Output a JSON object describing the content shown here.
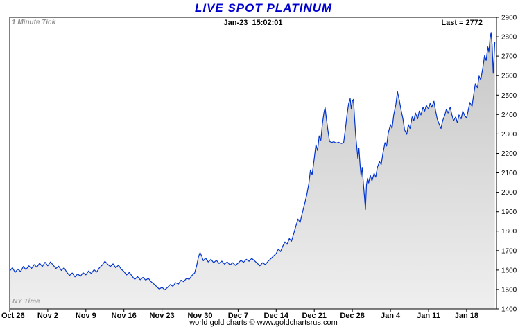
{
  "chart_data": {
    "type": "area",
    "title": "LIVE SPOT PLATINUM",
    "tick_type": "1 Minute Tick",
    "timestamp": "Jan-23  15:02:01",
    "last_label": "Last = 2772",
    "last_value": 2772,
    "timezone_note": "NY Time",
    "footer": "world gold charts © www.goldchartsrus.com",
    "title_color": "#0000cc",
    "line_color": "#0033cc",
    "area_color_top": "#c6c6c6",
    "area_color_bottom": "#efefef",
    "grid": "off",
    "legend": "none",
    "xlabel": "",
    "ylabel": "",
    "ylim": [
      1400,
      2900
    ],
    "y_ticks": [
      1400,
      1500,
      1600,
      1700,
      1800,
      1900,
      2000,
      2100,
      2200,
      2300,
      2400,
      2500,
      2600,
      2700,
      2800,
      2900
    ],
    "x_range": [
      0,
      89.5
    ],
    "x_ticks": [
      {
        "day": 0,
        "label": "Oct 26"
      },
      {
        "day": 7,
        "label": "Nov 2"
      },
      {
        "day": 14,
        "label": "Nov 9"
      },
      {
        "day": 21,
        "label": "Nov 16"
      },
      {
        "day": 28,
        "label": "Nov 23"
      },
      {
        "day": 35,
        "label": "Nov 30"
      },
      {
        "day": 42,
        "label": "Dec 7"
      },
      {
        "day": 49,
        "label": "Dec 14"
      },
      {
        "day": 56,
        "label": "Dec 21"
      },
      {
        "day": 63,
        "label": "Dec 28"
      },
      {
        "day": 70,
        "label": "Jan 4"
      },
      {
        "day": 77,
        "label": "Jan 11"
      },
      {
        "day": 84,
        "label": "Jan 18"
      }
    ],
    "series": [
      [
        0,
        1595
      ],
      [
        0.5,
        1612
      ],
      [
        1,
        1588
      ],
      [
        1.5,
        1605
      ],
      [
        2,
        1592
      ],
      [
        2.5,
        1618
      ],
      [
        3,
        1602
      ],
      [
        3.5,
        1622
      ],
      [
        4,
        1608
      ],
      [
        4.5,
        1628
      ],
      [
        5,
        1615
      ],
      [
        5.5,
        1635
      ],
      [
        6,
        1618
      ],
      [
        6.5,
        1640
      ],
      [
        7,
        1622
      ],
      [
        7.5,
        1642
      ],
      [
        8,
        1625
      ],
      [
        8.5,
        1608
      ],
      [
        9,
        1620
      ],
      [
        9.5,
        1598
      ],
      [
        10,
        1612
      ],
      [
        10.5,
        1588
      ],
      [
        11,
        1572
      ],
      [
        11.5,
        1585
      ],
      [
        12,
        1565
      ],
      [
        12.5,
        1580
      ],
      [
        13,
        1568
      ],
      [
        13.5,
        1586
      ],
      [
        14,
        1575
      ],
      [
        14.5,
        1595
      ],
      [
        15,
        1582
      ],
      [
        15.5,
        1602
      ],
      [
        16,
        1590
      ],
      [
        16.5,
        1612
      ],
      [
        17,
        1625
      ],
      [
        17.5,
        1645
      ],
      [
        18,
        1630
      ],
      [
        18.5,
        1618
      ],
      [
        19,
        1632
      ],
      [
        19.5,
        1612
      ],
      [
        20,
        1625
      ],
      [
        20.5,
        1605
      ],
      [
        21,
        1592
      ],
      [
        21.5,
        1575
      ],
      [
        22,
        1588
      ],
      [
        22.5,
        1568
      ],
      [
        23,
        1552
      ],
      [
        23.5,
        1566
      ],
      [
        24,
        1550
      ],
      [
        24.5,
        1562
      ],
      [
        25,
        1548
      ],
      [
        25.5,
        1558
      ],
      [
        26,
        1540
      ],
      [
        26.5,
        1528
      ],
      [
        27,
        1515
      ],
      [
        27.5,
        1502
      ],
      [
        28,
        1512
      ],
      [
        28.5,
        1498
      ],
      [
        29,
        1510
      ],
      [
        29.5,
        1525
      ],
      [
        30,
        1516
      ],
      [
        30.5,
        1535
      ],
      [
        31,
        1528
      ],
      [
        31.5,
        1548
      ],
      [
        32,
        1540
      ],
      [
        32.5,
        1558
      ],
      [
        33,
        1552
      ],
      [
        33.5,
        1572
      ],
      [
        34,
        1585
      ],
      [
        34.4,
        1625
      ],
      [
        34.7,
        1668
      ],
      [
        35,
        1690
      ],
      [
        35.3,
        1672
      ],
      [
        35.6,
        1648
      ],
      [
        36,
        1662
      ],
      [
        36.5,
        1642
      ],
      [
        37,
        1655
      ],
      [
        37.5,
        1638
      ],
      [
        38,
        1650
      ],
      [
        38.5,
        1634
      ],
      [
        39,
        1646
      ],
      [
        39.5,
        1630
      ],
      [
        40,
        1642
      ],
      [
        40.5,
        1626
      ],
      [
        41,
        1638
      ],
      [
        41.5,
        1624
      ],
      [
        42,
        1636
      ],
      [
        42.5,
        1650
      ],
      [
        43,
        1640
      ],
      [
        43.5,
        1655
      ],
      [
        44,
        1645
      ],
      [
        44.5,
        1660
      ],
      [
        45,
        1648
      ],
      [
        45.5,
        1635
      ],
      [
        46,
        1622
      ],
      [
        46.5,
        1638
      ],
      [
        47,
        1628
      ],
      [
        47.5,
        1645
      ],
      [
        48,
        1658
      ],
      [
        48.5,
        1672
      ],
      [
        49,
        1685
      ],
      [
        49.4,
        1708
      ],
      [
        49.8,
        1695
      ],
      [
        50.2,
        1722
      ],
      [
        50.6,
        1745
      ],
      [
        51,
        1732
      ],
      [
        51.4,
        1762
      ],
      [
        51.8,
        1748
      ],
      [
        52.2,
        1785
      ],
      [
        52.6,
        1825
      ],
      [
        53,
        1862
      ],
      [
        53.4,
        1845
      ],
      [
        53.8,
        1895
      ],
      [
        54.2,
        1938
      ],
      [
        54.6,
        1985
      ],
      [
        55,
        2045
      ],
      [
        55.3,
        2115
      ],
      [
        55.6,
        2090
      ],
      [
        56,
        2175
      ],
      [
        56.3,
        2245
      ],
      [
        56.6,
        2215
      ],
      [
        56.9,
        2290
      ],
      [
        57.2,
        2268
      ],
      [
        57.5,
        2355
      ],
      [
        57.8,
        2415
      ],
      [
        58,
        2435
      ],
      [
        58.2,
        2385
      ],
      [
        58.5,
        2322
      ],
      [
        58.8,
        2262
      ],
      [
        59.2,
        2256
      ],
      [
        59.6,
        2260
      ],
      [
        60,
        2253
      ],
      [
        60.5,
        2257
      ],
      [
        61,
        2251
      ],
      [
        61.4,
        2256
      ],
      [
        61.7,
        2320
      ],
      [
        62,
        2395
      ],
      [
        62.3,
        2455
      ],
      [
        62.6,
        2482
      ],
      [
        62.8,
        2428
      ],
      [
        63,
        2468
      ],
      [
        63.2,
        2478
      ],
      [
        63.4,
        2385
      ],
      [
        63.6,
        2295
      ],
      [
        63.8,
        2238
      ],
      [
        64,
        2175
      ],
      [
        64.2,
        2228
      ],
      [
        64.4,
        2148
      ],
      [
        64.6,
        2082
      ],
      [
        64.8,
        2128
      ],
      [
        65,
        2055
      ],
      [
        65.2,
        1985
      ],
      [
        65.4,
        1912
      ],
      [
        65.6,
        2038
      ],
      [
        65.8,
        2072
      ],
      [
        66,
        2048
      ],
      [
        66.3,
        2088
      ],
      [
        66.6,
        2058
      ],
      [
        67,
        2098
      ],
      [
        67.3,
        2078
      ],
      [
        67.6,
        2128
      ],
      [
        68,
        2158
      ],
      [
        68.3,
        2142
      ],
      [
        68.6,
        2198
      ],
      [
        69,
        2255
      ],
      [
        69.3,
        2238
      ],
      [
        69.6,
        2305
      ],
      [
        70,
        2348
      ],
      [
        70.3,
        2328
      ],
      [
        70.6,
        2398
      ],
      [
        71,
        2452
      ],
      [
        71.3,
        2518
      ],
      [
        71.6,
        2478
      ],
      [
        72,
        2418
      ],
      [
        72.3,
        2378
      ],
      [
        72.6,
        2322
      ],
      [
        73,
        2298
      ],
      [
        73.3,
        2348
      ],
      [
        73.6,
        2328
      ],
      [
        74,
        2388
      ],
      [
        74.3,
        2368
      ],
      [
        74.6,
        2408
      ],
      [
        75,
        2378
      ],
      [
        75.3,
        2418
      ],
      [
        75.6,
        2398
      ],
      [
        76,
        2438
      ],
      [
        76.3,
        2418
      ],
      [
        76.6,
        2448
      ],
      [
        77,
        2428
      ],
      [
        77.3,
        2458
      ],
      [
        77.6,
        2438
      ],
      [
        78,
        2468
      ],
      [
        78.3,
        2418
      ],
      [
        78.6,
        2378
      ],
      [
        79,
        2348
      ],
      [
        79.3,
        2328
      ],
      [
        79.6,
        2368
      ],
      [
        80,
        2398
      ],
      [
        80.3,
        2428
      ],
      [
        80.6,
        2408
      ],
      [
        81,
        2438
      ],
      [
        81.3,
        2398
      ],
      [
        81.6,
        2368
      ],
      [
        82,
        2388
      ],
      [
        82.3,
        2358
      ],
      [
        82.6,
        2398
      ],
      [
        83,
        2378
      ],
      [
        83.3,
        2418
      ],
      [
        83.6,
        2398
      ],
      [
        84,
        2382
      ],
      [
        84.3,
        2422
      ],
      [
        84.6,
        2462
      ],
      [
        85,
        2442
      ],
      [
        85.3,
        2502
      ],
      [
        85.6,
        2558
      ],
      [
        86,
        2538
      ],
      [
        86.3,
        2598
      ],
      [
        86.6,
        2578
      ],
      [
        87,
        2642
      ],
      [
        87.3,
        2702
      ],
      [
        87.6,
        2678
      ],
      [
        87.9,
        2748
      ],
      [
        88.1,
        2722
      ],
      [
        88.3,
        2788
      ],
      [
        88.5,
        2822
      ],
      [
        88.7,
        2758
      ],
      [
        88.9,
        2612
      ],
      [
        89.2,
        2772
      ]
    ]
  }
}
